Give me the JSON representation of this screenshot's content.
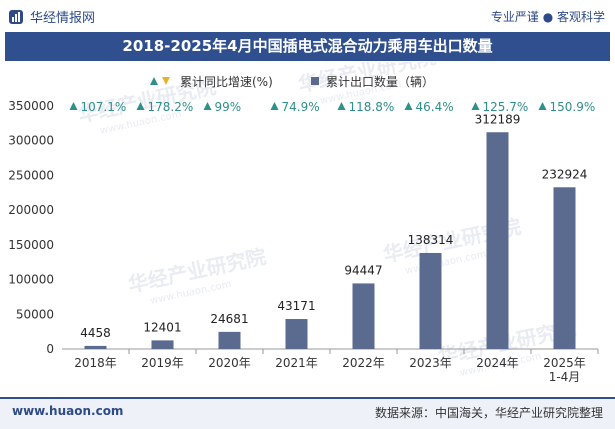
{
  "header": {
    "brand": "华经情报网",
    "slogan": "专业严谨 ● 客观科学"
  },
  "footer": {
    "website": "www.huaon.com",
    "source": "数据来源：中国海关，华经产业研究院整理"
  },
  "watermark": "华经产业研究院",
  "watermark_url": "www.huaon.com",
  "colors": {
    "bar": "#5b6a8f",
    "title_bg": "#2f4f8f",
    "growth": "#2f8f8a",
    "growth_down": "#e8b22a"
  },
  "chart_data": {
    "type": "bar",
    "title": "2018-2025年4月中国插电式混合动力乘用车出口数量",
    "categories": [
      "2018年",
      "2019年",
      "2020年",
      "2021年",
      "2022年",
      "2023年",
      "2024年",
      "2025年\n1-4月"
    ],
    "series": [
      {
        "name": "累计出口数量（辆）",
        "values": [
          4458,
          12401,
          24681,
          43171,
          94447,
          138314,
          312189,
          232924
        ]
      }
    ],
    "growth": {
      "name": "累计同比增速(%)",
      "values": [
        "107.1%",
        "178.2%",
        "99%",
        "74.9%",
        "118.8%",
        "46.4%",
        "125.7%",
        "150.9%"
      ]
    },
    "ylim": [
      0,
      350000
    ],
    "yticks": [
      0,
      50000,
      100000,
      150000,
      200000,
      250000,
      300000,
      350000
    ],
    "legend_position": "top-center",
    "grid": false
  }
}
